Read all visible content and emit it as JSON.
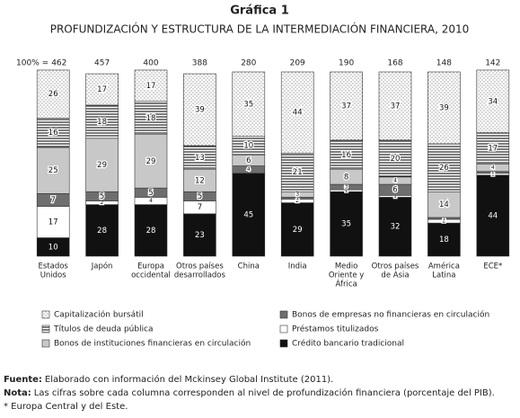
{
  "chart_data": {
    "type": "stacked_bar_100",
    "title": "Gráfica 1",
    "subtitle": "PROFUNDIZACIÓN Y ESTRUCTURA DE LA INTERMEDIACIÓN FINANCIERA, 2010",
    "totals_prefix": "100% =",
    "totals": [
      462,
      457,
      400,
      388,
      280,
      209,
      190,
      168,
      148,
      142
    ],
    "categories": [
      [
        "Estados",
        "Unidos"
      ],
      [
        "Japón"
      ],
      [
        "Europa",
        "occidental"
      ],
      [
        "Otros países",
        "desarrollados"
      ],
      [
        "China"
      ],
      [
        "India"
      ],
      [
        "Medio",
        "Oriente y",
        "África"
      ],
      [
        "Otros países",
        "de Asia"
      ],
      [
        "América",
        "Latina"
      ],
      [
        "ECE*"
      ]
    ],
    "ylim": [
      0,
      100
    ],
    "series": [
      {
        "name": "Crédito bancario tradicional",
        "color": "#111111",
        "pattern": "solid",
        "values": [
          10,
          28,
          28,
          23,
          45,
          29,
          35,
          32,
          18,
          44
        ]
      },
      {
        "name": "Préstamos titulizados",
        "color": "#ffffff",
        "pattern": "solid",
        "values": [
          17,
          2,
          4,
          7,
          null,
          2,
          1,
          1,
          2,
          1
        ]
      },
      {
        "name": "Bonos de empresas no financieras en circulación",
        "color": "#6e6e6e",
        "pattern": "solid",
        "values": [
          7,
          5,
          5,
          5,
          4,
          1,
          3,
          6,
          1,
          1
        ]
      },
      {
        "name": "Bonos de instituciones financieras en circulación",
        "color": "#c8c8c8",
        "pattern": "solid",
        "values": [
          25,
          29,
          29,
          12,
          6,
          3,
          8,
          4,
          14,
          4
        ]
      },
      {
        "name": "Títulos de deuda pública",
        "color": "#ffffff",
        "pattern": "lines",
        "values": [
          16,
          18,
          18,
          13,
          10,
          21,
          16,
          20,
          26,
          17
        ]
      },
      {
        "name": "Capitalización bursátil",
        "color": "#ffffff",
        "pattern": "dots",
        "values": [
          26,
          17,
          17,
          39,
          35,
          44,
          37,
          37,
          39,
          34
        ]
      }
    ],
    "legend_order": [
      5,
      2,
      4,
      1,
      3,
      0
    ],
    "notes": [
      {
        "label": "Fuente:",
        "text": "Elaborado con información del Mckinsey Global Institute (2011)."
      },
      {
        "label": "Nota:",
        "text": "Las cifras sobre cada columna corresponden al nivel de profundización financiera (porcentaje del PIB)."
      },
      {
        "text": "* Europa Central y del Este."
      }
    ]
  }
}
